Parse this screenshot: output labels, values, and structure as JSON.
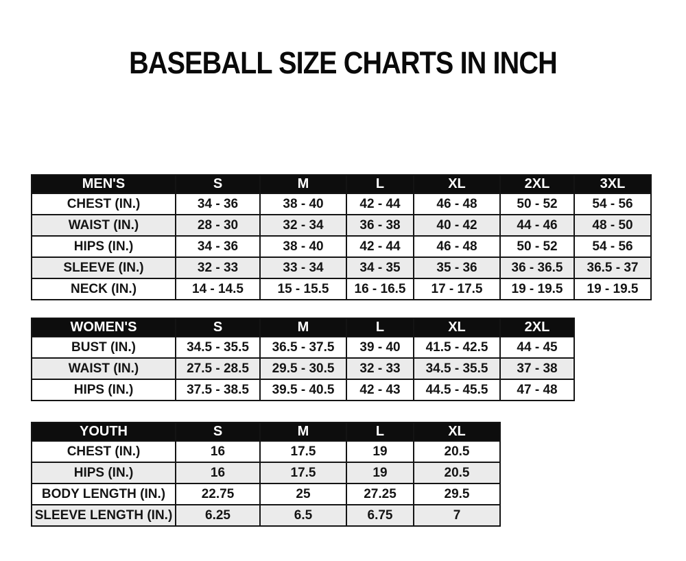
{
  "title": "BASEBALL SIZE CHARTS IN INCH",
  "colors": {
    "header_bg": "#0d0d0d",
    "header_text": "#ffffff",
    "row_alt_bg": "#ebebeb",
    "row_bg": "#ffffff",
    "border": "#141414",
    "text": "#141414",
    "page_bg": "#ffffff"
  },
  "chart_data": [
    {
      "type": "table",
      "group": "MEN'S",
      "columns": [
        "S",
        "M",
        "L",
        "XL",
        "2XL",
        "3XL"
      ],
      "rows": [
        {
          "label": "CHEST (IN.)",
          "values": [
            "34 - 36",
            "38 - 40",
            "42 - 44",
            "46 - 48",
            "50 - 52",
            "54 - 56"
          ]
        },
        {
          "label": "WAIST (IN.)",
          "values": [
            "28 - 30",
            "32 - 34",
            "36 - 38",
            "40 - 42",
            "44 - 46",
            "48 - 50"
          ]
        },
        {
          "label": "HIPS (IN.)",
          "values": [
            "34 - 36",
            "38 - 40",
            "42 - 44",
            "46 - 48",
            "50 - 52",
            "54 - 56"
          ]
        },
        {
          "label": "SLEEVE (IN.)",
          "values": [
            "32 - 33",
            "33 - 34",
            "34 - 35",
            "35 - 36",
            "36 - 36.5",
            "36.5 - 37"
          ]
        },
        {
          "label": "NECK (IN.)",
          "values": [
            "14 - 14.5",
            "15 - 15.5",
            "16 - 16.5",
            "17 - 17.5",
            "19 - 19.5",
            "19 - 19.5"
          ]
        }
      ]
    },
    {
      "type": "table",
      "group": "WOMEN'S",
      "columns": [
        "S",
        "M",
        "L",
        "XL",
        "2XL"
      ],
      "rows": [
        {
          "label": "BUST (IN.)",
          "values": [
            "34.5 - 35.5",
            "36.5 - 37.5",
            "39 - 40",
            "41.5 - 42.5",
            "44 - 45"
          ]
        },
        {
          "label": "WAIST (IN.)",
          "values": [
            "27.5 - 28.5",
            "29.5 - 30.5",
            "32 - 33",
            "34.5 - 35.5",
            "37 - 38"
          ]
        },
        {
          "label": "HIPS (IN.)",
          "values": [
            "37.5 - 38.5",
            "39.5 - 40.5",
            "42 - 43",
            "44.5 - 45.5",
            "47 - 48"
          ]
        }
      ]
    },
    {
      "type": "table",
      "group": "YOUTH",
      "columns": [
        "S",
        "M",
        "L",
        "XL"
      ],
      "rows": [
        {
          "label": "CHEST (IN.)",
          "values": [
            "16",
            "17.5",
            "19",
            "20.5"
          ]
        },
        {
          "label": "HIPS (IN.)",
          "values": [
            "16",
            "17.5",
            "19",
            "20.5"
          ]
        },
        {
          "label": "BODY LENGTH (IN.)",
          "values": [
            "22.75",
            "25",
            "27.25",
            "29.5"
          ]
        },
        {
          "label": "SLEEVE LENGTH (IN.)",
          "values": [
            "6.25",
            "6.5",
            "6.75",
            "7"
          ]
        }
      ]
    }
  ]
}
